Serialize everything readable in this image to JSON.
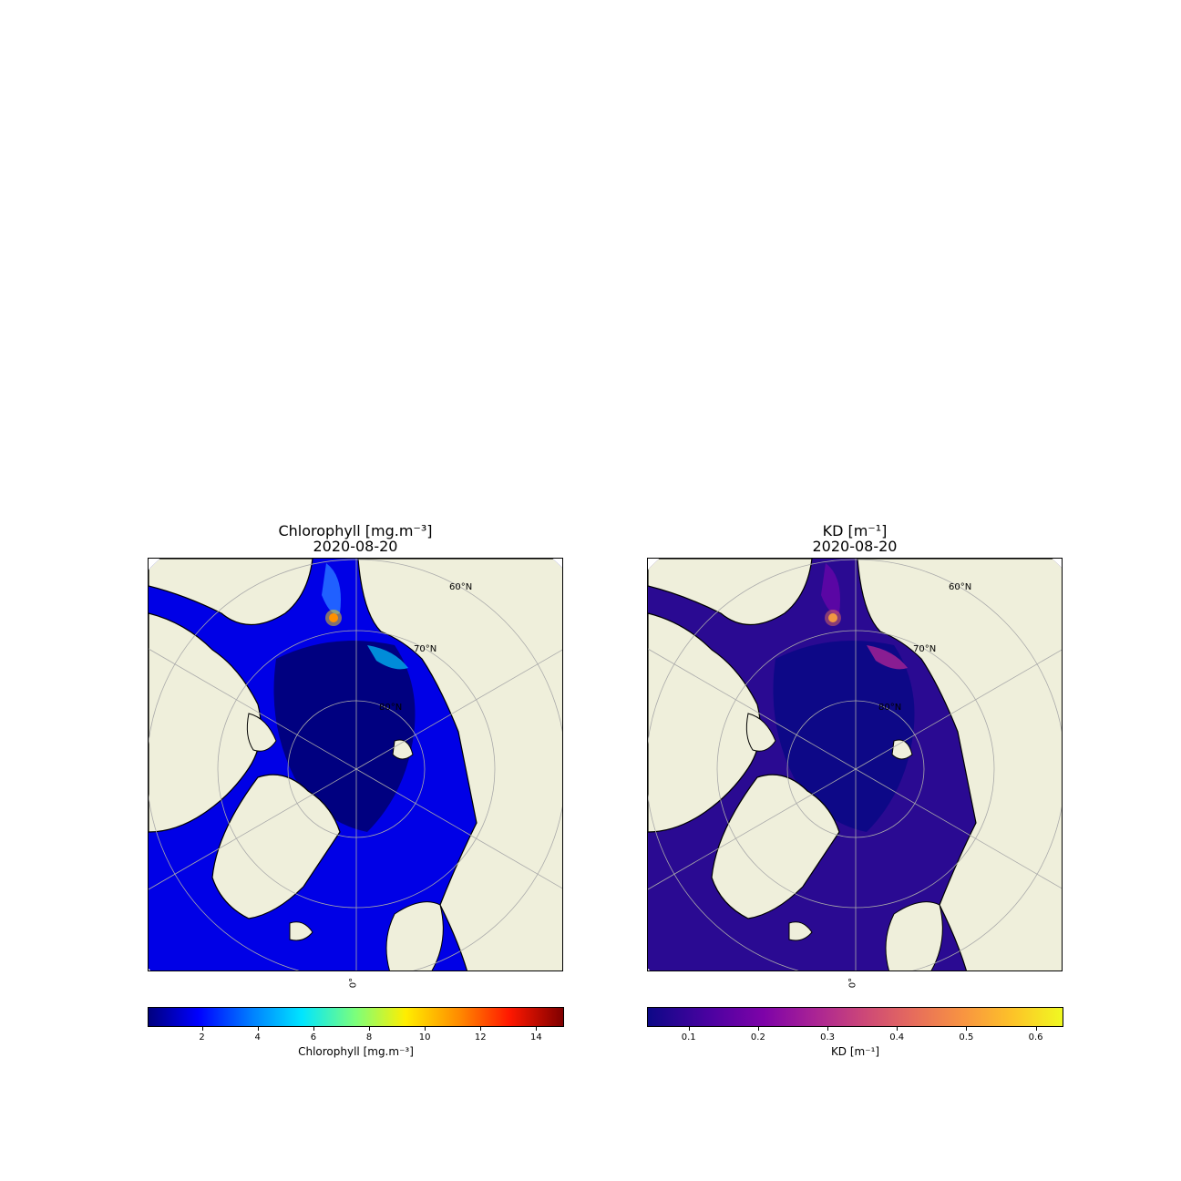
{
  "panels": [
    {
      "title": "Chlorophyll [mg.m⁻³]",
      "date": "2020-08-20",
      "colorbar": {
        "label": "Chlorophyll [mg.m⁻³]",
        "colormap": "jet",
        "range": [
          0.05,
          15
        ],
        "ticks": [
          "2",
          "4",
          "6",
          "8",
          "10",
          "12",
          "14"
        ],
        "tick_values": [
          2,
          4,
          6,
          8,
          10,
          12,
          14
        ]
      },
      "grid_labels": [
        "60°N",
        "70°N",
        "80°N"
      ],
      "lon_label": "0°",
      "ocean_color": "#0000e6",
      "land_color": "#efefdb"
    },
    {
      "title": "KD [m⁻¹]",
      "date": "2020-08-20",
      "colorbar": {
        "label": "KD [m⁻¹]",
        "colormap": "plasma",
        "range": [
          0.04,
          0.64
        ],
        "ticks": [
          "0.1",
          "0.2",
          "0.3",
          "0.4",
          "0.5",
          "0.6"
        ],
        "tick_values": [
          0.1,
          0.2,
          0.3,
          0.4,
          0.5,
          0.6
        ]
      },
      "grid_labels": [
        "60°N",
        "70°N",
        "80°N"
      ],
      "lon_label": "0°",
      "ocean_color": "#2a0a92",
      "land_color": "#efefdb"
    }
  ]
}
